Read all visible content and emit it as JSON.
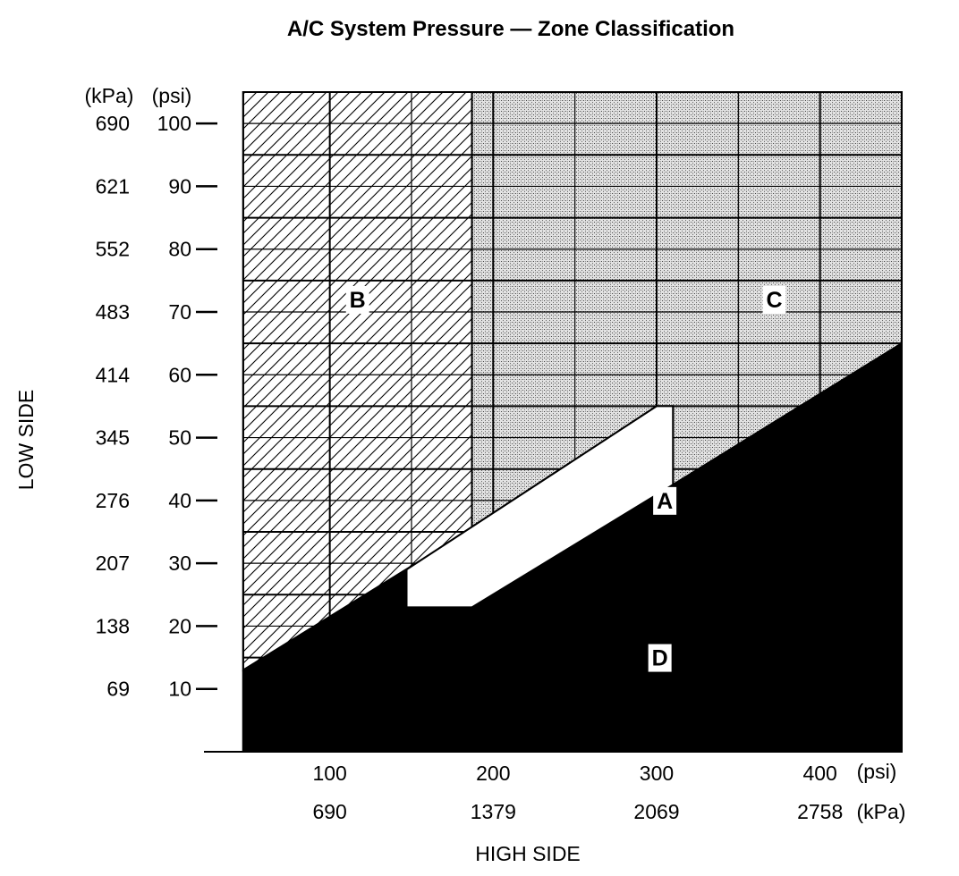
{
  "chart_data": {
    "type": "area",
    "title": "A/C System Pressure — Zone Classification",
    "xlabel": "HIGH SIDE",
    "ylabel": "LOW SIDE",
    "x_unit_labels": [
      "(psi)",
      "(kPa)"
    ],
    "y_unit_labels": [
      "(kPa)",
      "(psi)"
    ],
    "x_ticks_psi": [
      "100",
      "200",
      "300",
      "400"
    ],
    "x_ticks_kpa": [
      "690",
      "1379",
      "2069",
      "2758"
    ],
    "x_tick_values": [
      100,
      200,
      300,
      400
    ],
    "y_ticks_psi": [
      "10",
      "20",
      "30",
      "40",
      "50",
      "60",
      "70",
      "80",
      "90",
      "100"
    ],
    "y_ticks_kpa": [
      "69",
      "138",
      "207",
      "276",
      "345",
      "414",
      "483",
      "552",
      "621",
      "690"
    ],
    "y_tick_values": [
      10,
      20,
      30,
      40,
      50,
      60,
      70,
      80,
      90,
      100
    ],
    "xlim": [
      23,
      450
    ],
    "ylim": [
      0,
      105
    ],
    "grid": true,
    "zones": [
      {
        "name": "A",
        "fill": "white",
        "polygon": [
          [
            147,
            23
          ],
          [
            187,
            23
          ],
          [
            310,
            42.5
          ],
          [
            310,
            55
          ],
          [
            300,
            55
          ],
          [
            147,
            29
          ]
        ]
      },
      {
        "name": "B",
        "fill": "hatched",
        "polygon": [
          [
            47,
            13
          ],
          [
            187,
            35.5
          ],
          [
            187,
            105
          ],
          [
            47,
            105
          ]
        ]
      },
      {
        "name": "C",
        "fill": "stippled",
        "polygon": [
          [
            187,
            35.5
          ],
          [
            300,
            55
          ],
          [
            310,
            55
          ],
          [
            310,
            42.5
          ],
          [
            450,
            65
          ],
          [
            450,
            105
          ],
          [
            187,
            105
          ]
        ]
      },
      {
        "name": "D",
        "fill": "black",
        "polygon": [
          [
            47,
            0
          ],
          [
            450,
            0
          ],
          [
            450,
            65
          ],
          [
            310,
            42.5
          ],
          [
            187,
            23
          ],
          [
            147,
            23
          ],
          [
            147,
            29
          ],
          [
            47,
            13
          ]
        ]
      }
    ],
    "zone_label_points": {
      "A": [
        305,
        40
      ],
      "B": [
        117,
        72
      ],
      "C": [
        372,
        72
      ],
      "D": [
        302,
        15
      ]
    }
  }
}
